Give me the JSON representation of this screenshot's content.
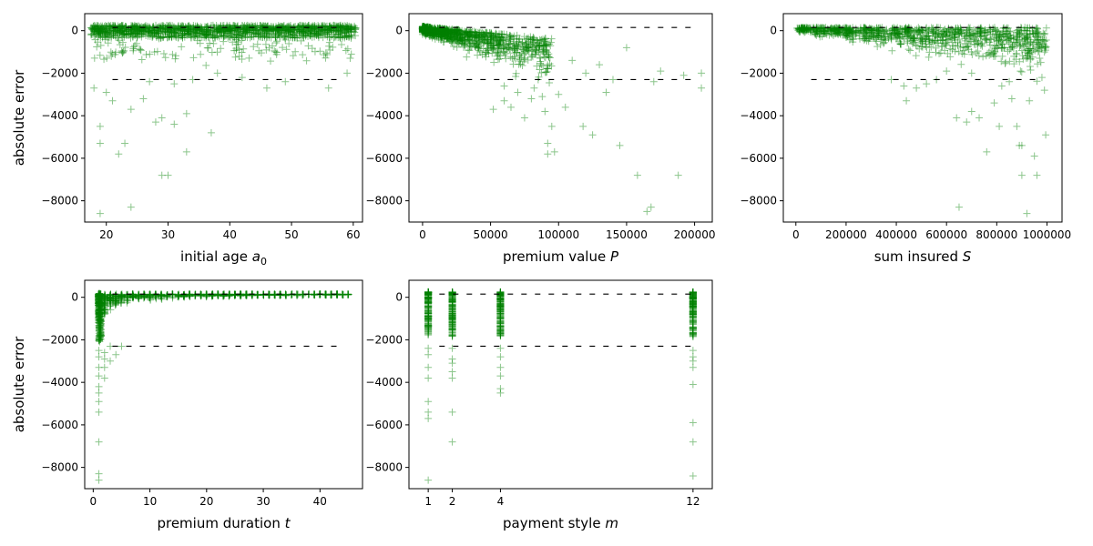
{
  "chart_data": [
    {
      "type": "scatter",
      "ylabel": "absolute error",
      "xlabel": "initial age a",
      "xlabel_subscript": "0",
      "xlim": [
        16.5,
        61.5
      ],
      "ylim": [
        -9000,
        800
      ],
      "xticks": [
        20,
        30,
        40,
        50,
        60
      ],
      "yticks": [
        0,
        -2000,
        -4000,
        -6000,
        -8000
      ],
      "reference_lines": [
        150,
        -2300
      ],
      "marker": "+",
      "color": "#008000",
      "outliers": [
        [
          18,
          -2700
        ],
        [
          19,
          -8600
        ],
        [
          19,
          -5300
        ],
        [
          19,
          -4500
        ],
        [
          20,
          -2900
        ],
        [
          21,
          -3300
        ],
        [
          22,
          -5800
        ],
        [
          23,
          -5300
        ],
        [
          24,
          -8300
        ],
        [
          24,
          -3700
        ],
        [
          26,
          -3200
        ],
        [
          27,
          -2400
        ],
        [
          28,
          -4300
        ],
        [
          29,
          -4100
        ],
        [
          29,
          -6800
        ],
        [
          30,
          -6800
        ],
        [
          31,
          -4400
        ],
        [
          31,
          -2500
        ],
        [
          33,
          -5700
        ],
        [
          33,
          -3900
        ],
        [
          34,
          -2300
        ],
        [
          37,
          -4800
        ],
        [
          38,
          -2000
        ],
        [
          42,
          -2200
        ],
        [
          46,
          -2700
        ],
        [
          49,
          -2400
        ],
        [
          56,
          -2700
        ],
        [
          59,
          -2000
        ]
      ]
    },
    {
      "type": "scatter",
      "ylabel": "",
      "xlabel": "premium value P",
      "xlim": [
        -10000,
        213000
      ],
      "ylim": [
        -9000,
        800
      ],
      "xticks": [
        0,
        50000,
        100000,
        150000,
        200000
      ],
      "yticks": [
        0,
        -2000,
        -4000,
        -6000,
        -8000
      ],
      "reference_lines": [
        150,
        -2300
      ],
      "marker": "+",
      "color": "#008000",
      "outliers": [
        [
          52000,
          -3700
        ],
        [
          60000,
          -3300
        ],
        [
          65000,
          -3600
        ],
        [
          70000,
          -2900
        ],
        [
          75000,
          -4100
        ],
        [
          80000,
          -3200
        ],
        [
          82000,
          -2700
        ],
        [
          88000,
          -3100
        ],
        [
          90000,
          -3800
        ],
        [
          92000,
          -5300
        ],
        [
          92000,
          -5800
        ],
        [
          95000,
          -4500
        ],
        [
          97000,
          -5700
        ],
        [
          100000,
          -3000
        ],
        [
          105000,
          -3600
        ],
        [
          118000,
          -4500
        ],
        [
          125000,
          -4900
        ],
        [
          135000,
          -2900
        ],
        [
          140000,
          -2300
        ],
        [
          145000,
          -5400
        ],
        [
          158000,
          -6800
        ],
        [
          165000,
          -8500
        ],
        [
          168000,
          -8300
        ],
        [
          170000,
          -2400
        ],
        [
          188000,
          -6800
        ],
        [
          192000,
          -2100
        ],
        [
          205000,
          -2000
        ],
        [
          205000,
          -2700
        ],
        [
          110000,
          -1400
        ],
        [
          130000,
          -1600
        ],
        [
          150000,
          -800
        ],
        [
          175000,
          -1900
        ],
        [
          120000,
          -2000
        ],
        [
          85000,
          -2300
        ],
        [
          60000,
          -2600
        ]
      ]
    },
    {
      "type": "scatter",
      "ylabel": "",
      "xlabel": "sum insured S",
      "xlim": [
        -50000,
        1060000
      ],
      "ylim": [
        -9000,
        800
      ],
      "xticks": [
        0,
        200000,
        400000,
        600000,
        800000,
        1000000
      ],
      "yticks": [
        0,
        -2000,
        -4000,
        -6000,
        -8000
      ],
      "reference_lines": [
        150,
        -2300
      ],
      "marker": "+",
      "color": "#008000",
      "outliers": [
        [
          380000,
          -2300
        ],
        [
          430000,
          -2600
        ],
        [
          440000,
          -3300
        ],
        [
          480000,
          -2700
        ],
        [
          520000,
          -2500
        ],
        [
          560000,
          -2300
        ],
        [
          640000,
          -4100
        ],
        [
          650000,
          -8300
        ],
        [
          680000,
          -4300
        ],
        [
          700000,
          -3800
        ],
        [
          730000,
          -4100
        ],
        [
          760000,
          -5700
        ],
        [
          790000,
          -3400
        ],
        [
          810000,
          -4500
        ],
        [
          860000,
          -3200
        ],
        [
          880000,
          -4500
        ],
        [
          890000,
          -5400
        ],
        [
          900000,
          -5400
        ],
        [
          900000,
          -6800
        ],
        [
          920000,
          -8600
        ],
        [
          930000,
          -3300
        ],
        [
          950000,
          -5900
        ],
        [
          960000,
          -6800
        ],
        [
          990000,
          -2800
        ],
        [
          995000,
          -4900
        ],
        [
          820000,
          -2600
        ],
        [
          850000,
          -2400
        ],
        [
          980000,
          -2200
        ],
        [
          700000,
          -2000
        ],
        [
          600000,
          -1900
        ]
      ]
    },
    {
      "type": "scatter",
      "ylabel": "absolute error",
      "xlabel": "premium duration t",
      "xlim": [
        -1.5,
        47.5
      ],
      "ylim": [
        -9000,
        800
      ],
      "xticks": [
        0,
        10,
        20,
        30,
        40
      ],
      "yticks": [
        0,
        -2000,
        -4000,
        -6000,
        -8000
      ],
      "reference_lines": [
        150,
        -2300
      ],
      "marker": "+",
      "color": "#008000",
      "outliers": [
        [
          1,
          -8600
        ],
        [
          1,
          -8300
        ],
        [
          1,
          -6800
        ],
        [
          1,
          -5400
        ],
        [
          1,
          -4900
        ],
        [
          1,
          -4500
        ],
        [
          1,
          -4200
        ],
        [
          1,
          -3700
        ],
        [
          1,
          -3300
        ],
        [
          1,
          -2800
        ],
        [
          1,
          -2500
        ],
        [
          2,
          -3300
        ],
        [
          2,
          -3800
        ],
        [
          2,
          -2600
        ],
        [
          3,
          -2300
        ],
        [
          4,
          -2700
        ],
        [
          5,
          -2300
        ],
        [
          3,
          -3000
        ],
        [
          2,
          -2900
        ]
      ]
    },
    {
      "type": "scatter",
      "ylabel": "",
      "xlabel": "payment style m",
      "xlim": [
        0.2,
        12.8
      ],
      "ylim": [
        -9000,
        800
      ],
      "xticks": [
        1,
        2,
        4,
        12
      ],
      "yticks": [
        0,
        -2000,
        -4000,
        -6000,
        -8000
      ],
      "reference_lines": [
        150,
        -2300
      ],
      "marker": "+",
      "color": "#008000",
      "outliers": [
        [
          1,
          -8600
        ],
        [
          1,
          -5700
        ],
        [
          1,
          -5400
        ],
        [
          1,
          -4900
        ],
        [
          1,
          -3800
        ],
        [
          1,
          -3300
        ],
        [
          1,
          -2700
        ],
        [
          1,
          -2400
        ],
        [
          2,
          -6800
        ],
        [
          2,
          -5400
        ],
        [
          2,
          -3800
        ],
        [
          2,
          -3500
        ],
        [
          2,
          -3100
        ],
        [
          2,
          -2900
        ],
        [
          2,
          -2400
        ],
        [
          4,
          -4500
        ],
        [
          4,
          -4300
        ],
        [
          4,
          -3700
        ],
        [
          4,
          -3300
        ],
        [
          4,
          -2800
        ],
        [
          4,
          -2400
        ],
        [
          12,
          -8400
        ],
        [
          12,
          -6800
        ],
        [
          12,
          -5900
        ],
        [
          12,
          -4100
        ],
        [
          12,
          -3300
        ],
        [
          12,
          -3000
        ],
        [
          12,
          -2800
        ],
        [
          12,
          -2500
        ]
      ]
    }
  ]
}
